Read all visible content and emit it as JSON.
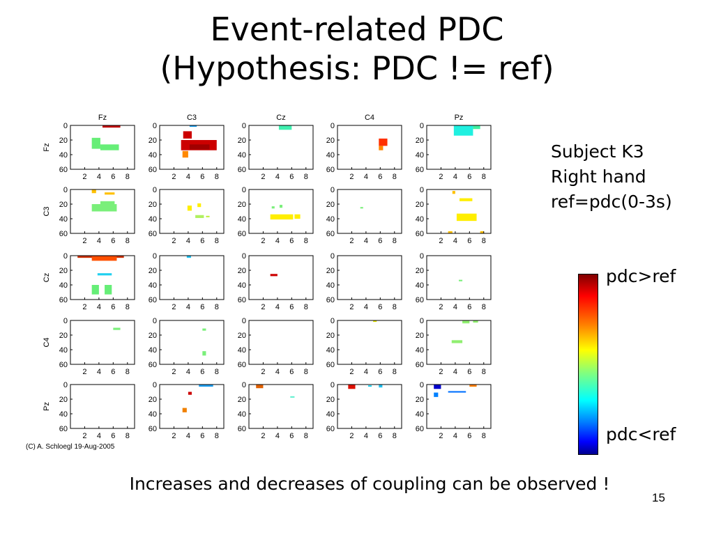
{
  "slide": {
    "title_line1": "Event-related PDC",
    "title_line2": "(Hypothesis: PDC != ref)",
    "subject": "Subject K3",
    "hand": "Right hand",
    "ref": "ref=pdc(0-3s)",
    "colorbar_top_label": "pdc>ref",
    "colorbar_bottom_label": "pdc<ref",
    "copyright": "(C) A. Schloegl 19-Aug-2005",
    "footer": "Increases and decreases of coupling can be observed !",
    "page_number": "15"
  },
  "chart_data": {
    "type": "heatmap",
    "channels": [
      "Fz",
      "C3",
      "Cz",
      "C4",
      "Pz"
    ],
    "xticks": [
      2,
      4,
      6,
      8
    ],
    "yticks": [
      0,
      20,
      40,
      60
    ],
    "xlim": [
      0,
      9
    ],
    "ylim": [
      0,
      60
    ],
    "yreversed": true,
    "grid": false,
    "colormap": "jet",
    "colorbar_range": [
      "pdc<ref",
      "pdc>ref"
    ],
    "blobs": [
      {
        "row": 0,
        "col": 0,
        "x": [
          4.5,
          7.0
        ],
        "y": [
          0,
          3
        ],
        "color": "#c00000"
      },
      {
        "row": 0,
        "col": 0,
        "x": [
          3.0,
          4.2
        ],
        "y": [
          17,
          32
        ],
        "color": "#66ee77"
      },
      {
        "row": 0,
        "col": 0,
        "x": [
          4.2,
          6.8
        ],
        "y": [
          26,
          34
        ],
        "color": "#66ee77"
      },
      {
        "row": 0,
        "col": 1,
        "x": [
          4.2,
          5.2
        ],
        "y": [
          0,
          2
        ],
        "color": "#1aa0f0"
      },
      {
        "row": 0,
        "col": 1,
        "x": [
          3.3,
          4.5
        ],
        "y": [
          8,
          18
        ],
        "color": "#cc0000"
      },
      {
        "row": 0,
        "col": 1,
        "x": [
          3.0,
          8.0
        ],
        "y": [
          20,
          34
        ],
        "color": "#cc0000"
      },
      {
        "row": 0,
        "col": 1,
        "x": [
          4.2,
          7.0
        ],
        "y": [
          26,
          33
        ],
        "color": "#a00000"
      },
      {
        "row": 0,
        "col": 1,
        "x": [
          3.2,
          4.0
        ],
        "y": [
          35,
          44
        ],
        "color": "#ff8800"
      },
      {
        "row": 0,
        "col": 2,
        "x": [
          4.2,
          6.0
        ],
        "y": [
          0,
          6
        ],
        "color": "#40f0b0"
      },
      {
        "row": 0,
        "col": 3,
        "x": [
          5.8,
          7.0
        ],
        "y": [
          18,
          28
        ],
        "color": "#ff3000"
      },
      {
        "row": 0,
        "col": 3,
        "x": [
          5.8,
          6.4
        ],
        "y": [
          28,
          34
        ],
        "color": "#ff8800"
      },
      {
        "row": 0,
        "col": 4,
        "x": [
          3.8,
          6.5
        ],
        "y": [
          0,
          14
        ],
        "color": "#20f0e0"
      },
      {
        "row": 0,
        "col": 4,
        "x": [
          6.5,
          7.5
        ],
        "y": [
          0,
          5
        ],
        "color": "#40f0a0"
      },
      {
        "row": 1,
        "col": 0,
        "x": [
          3.0,
          3.6
        ],
        "y": [
          0,
          5
        ],
        "color": "#ffc000"
      },
      {
        "row": 1,
        "col": 0,
        "x": [
          4.8,
          6.2
        ],
        "y": [
          4,
          7
        ],
        "color": "#ffc000"
      },
      {
        "row": 1,
        "col": 0,
        "x": [
          3.0,
          6.5
        ],
        "y": [
          20,
          30
        ],
        "color": "#7aef7a"
      },
      {
        "row": 1,
        "col": 0,
        "x": [
          4.2,
          6.2
        ],
        "y": [
          16,
          22
        ],
        "color": "#7aef7a"
      },
      {
        "row": 1,
        "col": 1,
        "x": [
          3.9,
          4.5
        ],
        "y": [
          22,
          29
        ],
        "color": "#ffee00"
      },
      {
        "row": 1,
        "col": 1,
        "x": [
          5.3,
          5.8
        ],
        "y": [
          19,
          24
        ],
        "color": "#ffee00"
      },
      {
        "row": 1,
        "col": 1,
        "x": [
          5.0,
          6.2
        ],
        "y": [
          35,
          39
        ],
        "color": "#b0f060"
      },
      {
        "row": 1,
        "col": 1,
        "x": [
          6.5,
          7.0
        ],
        "y": [
          36,
          38
        ],
        "color": "#c0f040"
      },
      {
        "row": 1,
        "col": 2,
        "x": [
          3.2,
          3.6
        ],
        "y": [
          23,
          26
        ],
        "color": "#7aef7a"
      },
      {
        "row": 1,
        "col": 2,
        "x": [
          4.3,
          4.7
        ],
        "y": [
          21,
          25
        ],
        "color": "#7aef7a"
      },
      {
        "row": 1,
        "col": 2,
        "x": [
          3.0,
          6.2
        ],
        "y": [
          34,
          41
        ],
        "color": "#ffee00"
      },
      {
        "row": 1,
        "col": 2,
        "x": [
          6.4,
          7.2
        ],
        "y": [
          34,
          40
        ],
        "color": "#ffee00"
      },
      {
        "row": 1,
        "col": 3,
        "x": [
          3.2,
          3.6
        ],
        "y": [
          24,
          26
        ],
        "color": "#7aef7a"
      },
      {
        "row": 1,
        "col": 4,
        "x": [
          3.6,
          4.0
        ],
        "y": [
          2,
          6
        ],
        "color": "#ffc000"
      },
      {
        "row": 1,
        "col": 4,
        "x": [
          4.6,
          6.4
        ],
        "y": [
          12,
          16
        ],
        "color": "#ffee00"
      },
      {
        "row": 1,
        "col": 4,
        "x": [
          4.2,
          7.0
        ],
        "y": [
          33,
          43
        ],
        "color": "#ffee00"
      },
      {
        "row": 1,
        "col": 4,
        "x": [
          3.0,
          3.6
        ],
        "y": [
          57,
          60
        ],
        "color": "#ffc000"
      },
      {
        "row": 1,
        "col": 4,
        "x": [
          7.5,
          8.0
        ],
        "y": [
          57,
          60
        ],
        "color": "#ffc000"
      },
      {
        "row": 2,
        "col": 0,
        "x": [
          1.0,
          7.5
        ],
        "y": [
          0,
          3
        ],
        "color": "#cc3000"
      },
      {
        "row": 2,
        "col": 0,
        "x": [
          3.0,
          6.5
        ],
        "y": [
          1,
          7
        ],
        "color": "#ff5000"
      },
      {
        "row": 2,
        "col": 0,
        "x": [
          3.8,
          5.8
        ],
        "y": [
          24,
          27
        ],
        "color": "#20d0f0"
      },
      {
        "row": 2,
        "col": 0,
        "x": [
          3.0,
          4.0
        ],
        "y": [
          40,
          53
        ],
        "color": "#66ee77"
      },
      {
        "row": 2,
        "col": 0,
        "x": [
          4.8,
          5.8
        ],
        "y": [
          40,
          53
        ],
        "color": "#66ee77"
      },
      {
        "row": 2,
        "col": 1,
        "x": [
          3.8,
          4.4
        ],
        "y": [
          0,
          3
        ],
        "color": "#20c0f0"
      },
      {
        "row": 2,
        "col": 2,
        "x": [
          3.0,
          4.0
        ],
        "y": [
          25,
          28
        ],
        "color": "#cc0000"
      },
      {
        "row": 2,
        "col": 4,
        "x": [
          4.5,
          5.0
        ],
        "y": [
          33,
          35
        ],
        "color": "#7aef7a"
      },
      {
        "row": 3,
        "col": 0,
        "x": [
          6.0,
          7.0
        ],
        "y": [
          10,
          13
        ],
        "color": "#7aef7a"
      },
      {
        "row": 3,
        "col": 1,
        "x": [
          6.0,
          6.5
        ],
        "y": [
          11,
          14
        ],
        "color": "#7aef7a"
      },
      {
        "row": 3,
        "col": 1,
        "x": [
          6.0,
          6.5
        ],
        "y": [
          42,
          48
        ],
        "color": "#7aef7a"
      },
      {
        "row": 3,
        "col": 3,
        "x": [
          5.0,
          5.5
        ],
        "y": [
          0,
          2
        ],
        "color": "#e0e000"
      },
      {
        "row": 3,
        "col": 4,
        "x": [
          5.0,
          6.0
        ],
        "y": [
          0,
          4
        ],
        "color": "#90ef70"
      },
      {
        "row": 3,
        "col": 4,
        "x": [
          6.5,
          7.2
        ],
        "y": [
          0,
          3
        ],
        "color": "#90ef70"
      },
      {
        "row": 3,
        "col": 4,
        "x": [
          3.5,
          5.0
        ],
        "y": [
          27,
          31
        ],
        "color": "#90ef70"
      },
      {
        "row": 4,
        "col": 1,
        "x": [
          5.5,
          7.5
        ],
        "y": [
          0,
          3
        ],
        "color": "#20a0f0"
      },
      {
        "row": 4,
        "col": 1,
        "x": [
          4.0,
          4.5
        ],
        "y": [
          10,
          14
        ],
        "color": "#cc0000"
      },
      {
        "row": 4,
        "col": 1,
        "x": [
          3.2,
          3.8
        ],
        "y": [
          32,
          38
        ],
        "color": "#f08000"
      },
      {
        "row": 4,
        "col": 2,
        "x": [
          1.0,
          2.0
        ],
        "y": [
          0,
          5
        ],
        "color": "#e06000"
      },
      {
        "row": 4,
        "col": 2,
        "x": [
          5.8,
          6.4
        ],
        "y": [
          16,
          18
        ],
        "color": "#60f0d0"
      },
      {
        "row": 4,
        "col": 3,
        "x": [
          1.5,
          2.5
        ],
        "y": [
          0,
          6
        ],
        "color": "#dd1000"
      },
      {
        "row": 4,
        "col": 3,
        "x": [
          4.3,
          4.8
        ],
        "y": [
          1,
          3
        ],
        "color": "#20d0f0"
      },
      {
        "row": 4,
        "col": 3,
        "x": [
          5.8,
          6.3
        ],
        "y": [
          0,
          4
        ],
        "color": "#20c0f0"
      },
      {
        "row": 4,
        "col": 4,
        "x": [
          1.0,
          2.0
        ],
        "y": [
          0,
          6
        ],
        "color": "#0000cc"
      },
      {
        "row": 4,
        "col": 4,
        "x": [
          1.0,
          1.6
        ],
        "y": [
          11,
          17
        ],
        "color": "#0080ff"
      },
      {
        "row": 4,
        "col": 4,
        "x": [
          3.0,
          5.5
        ],
        "y": [
          9,
          11
        ],
        "color": "#0070ff"
      },
      {
        "row": 4,
        "col": 4,
        "x": [
          6.0,
          7.0
        ],
        "y": [
          0,
          3
        ],
        "color": "#ff8000"
      }
    ]
  }
}
